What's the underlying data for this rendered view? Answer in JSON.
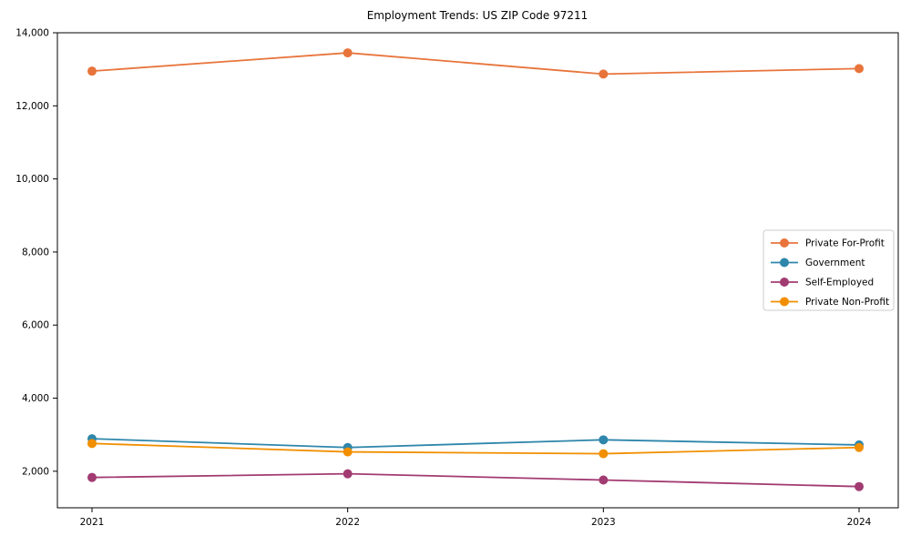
{
  "title": "Employment Trends: US ZIP Code 97211",
  "colors": {
    "private_for_profit": "#E8743B",
    "government": "#2E86AB",
    "self_employed": "#A23B72",
    "private_non_profit": "#F18F01",
    "spine": "#000000",
    "legend_border": "#cccccc",
    "background": "#ffffff"
  },
  "chart_data": {
    "type": "line",
    "title": "Employment Trends: US ZIP Code 97211",
    "xlabel": "",
    "ylabel": "",
    "x": [
      2021,
      2022,
      2023,
      2024
    ],
    "x_tick_labels": [
      "2021",
      "2022",
      "2023",
      "2024"
    ],
    "y_ticks": [
      2000,
      4000,
      6000,
      8000,
      10000,
      12000,
      14000
    ],
    "y_tick_labels": [
      "2,000",
      "4,000",
      "6,000",
      "8,000",
      "10,000",
      "12,000",
      "14,000"
    ],
    "ylim": [
      1000,
      14000
    ],
    "grid": false,
    "legend_position": "center right",
    "marker": "circle",
    "series": [
      {
        "name": "Private For-Profit",
        "color": "#E8743B",
        "values": [
          12950,
          13450,
          12870,
          13020
        ]
      },
      {
        "name": "Government",
        "color": "#2E86AB",
        "values": [
          2890,
          2650,
          2860,
          2720
        ]
      },
      {
        "name": "Self-Employed",
        "color": "#A23B72",
        "values": [
          1830,
          1930,
          1760,
          1580
        ]
      },
      {
        "name": "Private Non-Profit",
        "color": "#F18F01",
        "values": [
          2760,
          2530,
          2480,
          2650
        ]
      }
    ]
  }
}
